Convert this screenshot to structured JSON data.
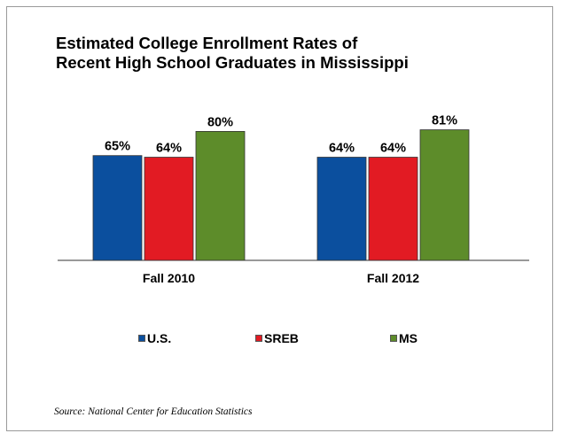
{
  "chart_data": {
    "type": "bar",
    "title_lines": [
      "Estimated College Enrollment Rates of",
      "Recent High School Graduates in Mississippi"
    ],
    "categories": [
      "Fall 2010",
      "Fall 2012"
    ],
    "series": [
      {
        "name": "U.S.",
        "values": [
          65,
          64
        ],
        "labels": [
          "65%",
          "64%"
        ],
        "color": "#0b4f9e"
      },
      {
        "name": "SREB",
        "values": [
          64,
          64
        ],
        "labels": [
          "64%",
          "64%"
        ],
        "color": "#e21b23"
      },
      {
        "name": "MS",
        "values": [
          80,
          81
        ],
        "labels": [
          "80%",
          "81%"
        ],
        "color": "#5d8c2a"
      }
    ],
    "ylim": [
      0,
      100
    ],
    "grid": false,
    "legend_position": "bottom"
  },
  "source": "Source: National Center for Education Statistics"
}
